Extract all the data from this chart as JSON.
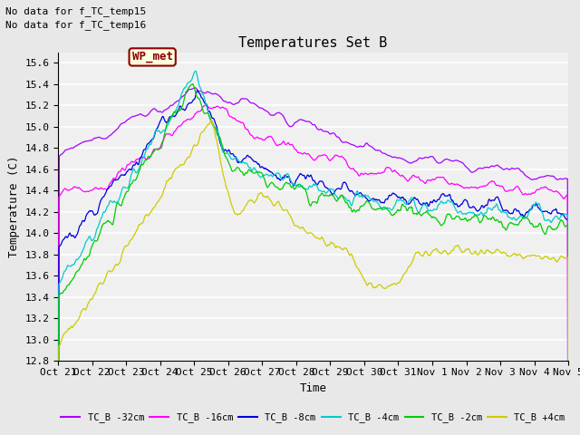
{
  "title": "Temperatures Set B",
  "ylabel": "Temperature (C)",
  "xlabel": "Time",
  "no_data_text": [
    "No data for f_TC_temp15",
    "No data for f_TC_temp16"
  ],
  "wp_met_label": "WP_met",
  "legend_labels": [
    "TC_B -32cm",
    "TC_B -16cm",
    "TC_B -8cm",
    "TC_B -4cm",
    "TC_B -2cm",
    "TC_B +4cm"
  ],
  "legend_colors": [
    "#AA00FF",
    "#FF00FF",
    "#0000DD",
    "#00CCCC",
    "#00CC00",
    "#CCCC00"
  ],
  "ylim": [
    12.8,
    15.7
  ],
  "yticks": [
    12.8,
    13.0,
    13.2,
    13.4,
    13.6,
    13.8,
    14.0,
    14.2,
    14.4,
    14.6,
    14.8,
    15.0,
    15.2,
    15.4,
    15.6
  ],
  "xtick_labels": [
    "Oct 21",
    "Oct 22",
    "Oct 23",
    "Oct 24",
    "Oct 25",
    "Oct 26",
    "Oct 27",
    "Oct 28",
    "Oct 29",
    "Oct 30",
    "Oct 31",
    "Nov 1",
    "Nov 2",
    "Nov 3",
    "Nov 4",
    "Nov 5"
  ],
  "n_points": 1200,
  "background_color": "#E8E8E8",
  "plot_bg_color": "#F0F0F0",
  "grid_color": "#FFFFFF",
  "font_family": "monospace",
  "title_fontsize": 11,
  "tick_fontsize": 8,
  "label_fontsize": 9
}
